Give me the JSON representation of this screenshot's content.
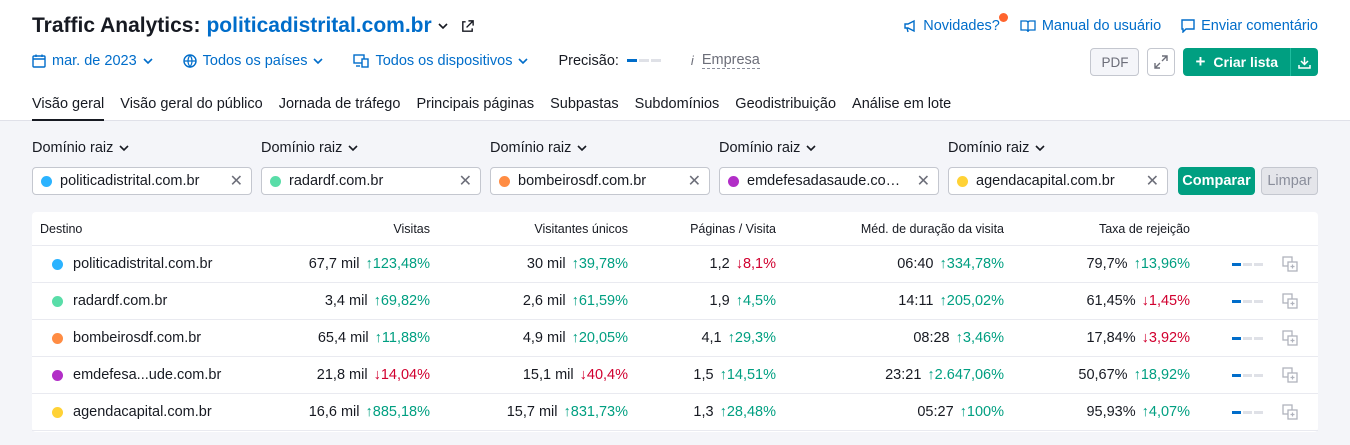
{
  "header": {
    "title": "Traffic Analytics:",
    "domain": "politicadistrital.com.br",
    "links": {
      "news": "Novidades?",
      "manual": "Manual do usuário",
      "feedback": "Enviar comentário"
    }
  },
  "filters": {
    "date": "mar. de 2023",
    "country": "Todos os países",
    "device": "Todos os dispositivos",
    "precision_label": "Precisão:",
    "empresa": "Empresa"
  },
  "actions": {
    "pdf": "PDF",
    "create_list": "Criar lista"
  },
  "tabs": [
    {
      "label": "Visão geral",
      "active": true
    },
    {
      "label": "Visão geral do público"
    },
    {
      "label": "Jornada de tráfego"
    },
    {
      "label": "Principais páginas"
    },
    {
      "label": "Subpastas"
    },
    {
      "label": "Subdomínios"
    },
    {
      "label": "Geodistribuição"
    },
    {
      "label": "Análise em lote"
    }
  ],
  "compare": {
    "label": "Domínio raiz",
    "inputs": [
      {
        "value": "politicadistrital.com.br",
        "color": "#2bb3ff"
      },
      {
        "value": "radardf.com.br",
        "color": "#59dda8"
      },
      {
        "value": "bombeirosdf.com.br",
        "color": "#ff8c43"
      },
      {
        "value": "emdefesadasaude.com.br",
        "color": "#b22ec7"
      },
      {
        "value": "agendacapital.com.br",
        "color": "#ffd236"
      }
    ],
    "compare_button": "Comparar",
    "clear_button": "Limpar"
  },
  "table": {
    "headers": {
      "destino": "Destino",
      "visitas": "Visitas",
      "unicos": "Visitantes únicos",
      "paginas": "Páginas / Visita",
      "duracao": "Méd. de duração da visita",
      "rejeicao": "Taxa de rejeição"
    },
    "rows": [
      {
        "domain": "politicadistrital.com.br",
        "color": "#2bb3ff",
        "visitas": "67,7 mil",
        "visitas_d": "↑123,48%",
        "visitas_up": true,
        "unicos": "30 mil",
        "unicos_d": "↑39,78%",
        "unicos_up": true,
        "paginas": "1,2",
        "paginas_d": "↓8,1%",
        "paginas_up": false,
        "duracao": "06:40",
        "duracao_d": "↑334,78%",
        "duracao_up": true,
        "rejeicao": "79,7%",
        "rejeicao_d": "↑13,96%",
        "rejeicao_up": true
      },
      {
        "domain": "radardf.com.br",
        "color": "#59dda8",
        "visitas": "3,4 mil",
        "visitas_d": "↑69,82%",
        "visitas_up": true,
        "unicos": "2,6 mil",
        "unicos_d": "↑61,59%",
        "unicos_up": true,
        "paginas": "1,9",
        "paginas_d": "↑4,5%",
        "paginas_up": true,
        "duracao": "14:11",
        "duracao_d": "↑205,02%",
        "duracao_up": true,
        "rejeicao": "61,45%",
        "rejeicao_d": "↓1,45%",
        "rejeicao_up": false
      },
      {
        "domain": "bombeirosdf.com.br",
        "color": "#ff8c43",
        "visitas": "65,4 mil",
        "visitas_d": "↑11,88%",
        "visitas_up": true,
        "unicos": "4,9 mil",
        "unicos_d": "↑20,05%",
        "unicos_up": true,
        "paginas": "4,1",
        "paginas_d": "↑29,3%",
        "paginas_up": true,
        "duracao": "08:28",
        "duracao_d": "↑3,46%",
        "duracao_up": true,
        "rejeicao": "17,84%",
        "rejeicao_d": "↓3,92%",
        "rejeicao_up": false
      },
      {
        "domain": "emdefesa...ude.com.br",
        "color": "#b22ec7",
        "visitas": "21,8 mil",
        "visitas_d": "↓14,04%",
        "visitas_up": false,
        "unicos": "15,1 mil",
        "unicos_d": "↓40,4%",
        "unicos_up": false,
        "paginas": "1,5",
        "paginas_d": "↑14,51%",
        "paginas_up": true,
        "duracao": "23:21",
        "duracao_d": "↑2.647,06%",
        "duracao_up": true,
        "rejeicao": "50,67%",
        "rejeicao_d": "↑18,92%",
        "rejeicao_up": true
      },
      {
        "domain": "agendacapital.com.br",
        "color": "#ffd236",
        "visitas": "16,6 mil",
        "visitas_d": "↑885,18%",
        "visitas_up": true,
        "unicos": "15,7 mil",
        "unicos_d": "↑831,73%",
        "unicos_up": true,
        "paginas": "1,3",
        "paginas_d": "↑28,48%",
        "paginas_up": true,
        "duracao": "05:27",
        "duracao_d": "↑100%",
        "duracao_up": true,
        "rejeicao": "95,93%",
        "rejeicao_d": "↑4,07%",
        "rejeicao_up": true
      }
    ]
  }
}
